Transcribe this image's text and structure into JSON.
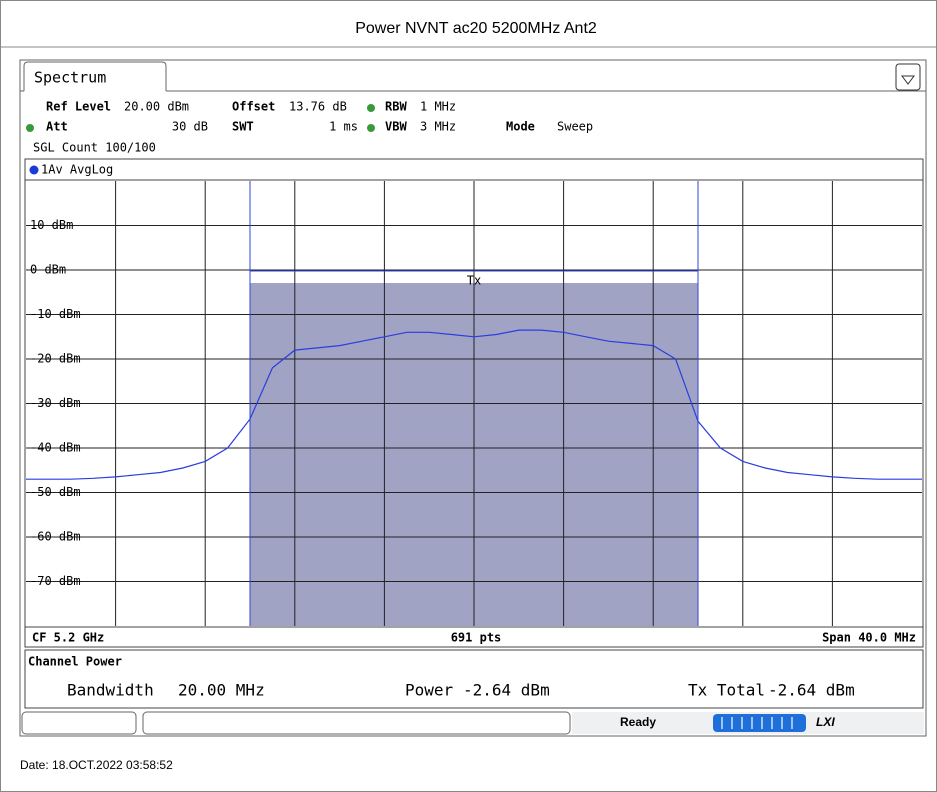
{
  "title": "Power NVNT ac20 5200MHz Ant2",
  "tab": "Spectrum",
  "settings": {
    "ref_level": {
      "label": "Ref Level",
      "value": "20.00 dBm"
    },
    "offset": {
      "label": "Offset",
      "value": "13.76 dB"
    },
    "rbw": {
      "label": "RBW",
      "value": "1 MHz"
    },
    "att": {
      "label": "Att",
      "value": "30 dB"
    },
    "swt": {
      "label": "SWT",
      "value": "1 ms"
    },
    "vbw": {
      "label": "VBW",
      "value": "3 MHz"
    },
    "mode": {
      "label": "Mode",
      "value": "Sweep"
    },
    "count": "SGL Count 100/100"
  },
  "plot": {
    "trace_label": "1Av AvgLog",
    "ylim": [
      -80,
      20
    ],
    "yticks": [
      {
        "value": 10,
        "label": "10 dBm"
      },
      {
        "value": 0,
        "label": "0 dBm"
      },
      {
        "value": -10,
        "label": "-10 dBm"
      },
      {
        "value": -20,
        "label": "-20 dBm"
      },
      {
        "value": -30,
        "label": "-30 dBm"
      },
      {
        "value": -40,
        "label": "-40 dBm"
      },
      {
        "value": -50,
        "label": "-50 dBm"
      },
      {
        "value": -60,
        "label": "-60 dBm"
      },
      {
        "value": -70,
        "label": "-70 dBm"
      }
    ],
    "channel_label": "Tx",
    "trace": [
      -47,
      -47,
      -47,
      -46.8,
      -46.5,
      -46,
      -45.5,
      -44.5,
      -43,
      -40,
      -33.5,
      -22,
      -18,
      -17.5,
      -17,
      -16,
      -15,
      -14,
      -14,
      -14.5,
      -15,
      -14.5,
      -13.5,
      -13.5,
      -14,
      -15,
      -16,
      -16.5,
      -17,
      -20,
      -34,
      -40,
      -43,
      -44.5,
      -45.5,
      -46,
      -46.5,
      -46.8,
      -47,
      -47,
      -47
    ],
    "footer": {
      "cf": "CF 5.2 GHz",
      "points": "691 pts",
      "span": "Span 40.0 MHz"
    }
  },
  "results": {
    "title": "Channel Power",
    "bandwidth": {
      "label": "Bandwidth",
      "value": "20.00 MHz"
    },
    "power": {
      "label": "Power",
      "value": "-2.64 dBm"
    },
    "tx_total": {
      "label": "Tx Total",
      "value": "-2.64 dBm"
    }
  },
  "status": {
    "state": "Ready",
    "brand": "LXI"
  },
  "date": "Date: 18.OCT.2022  03:58:52"
}
